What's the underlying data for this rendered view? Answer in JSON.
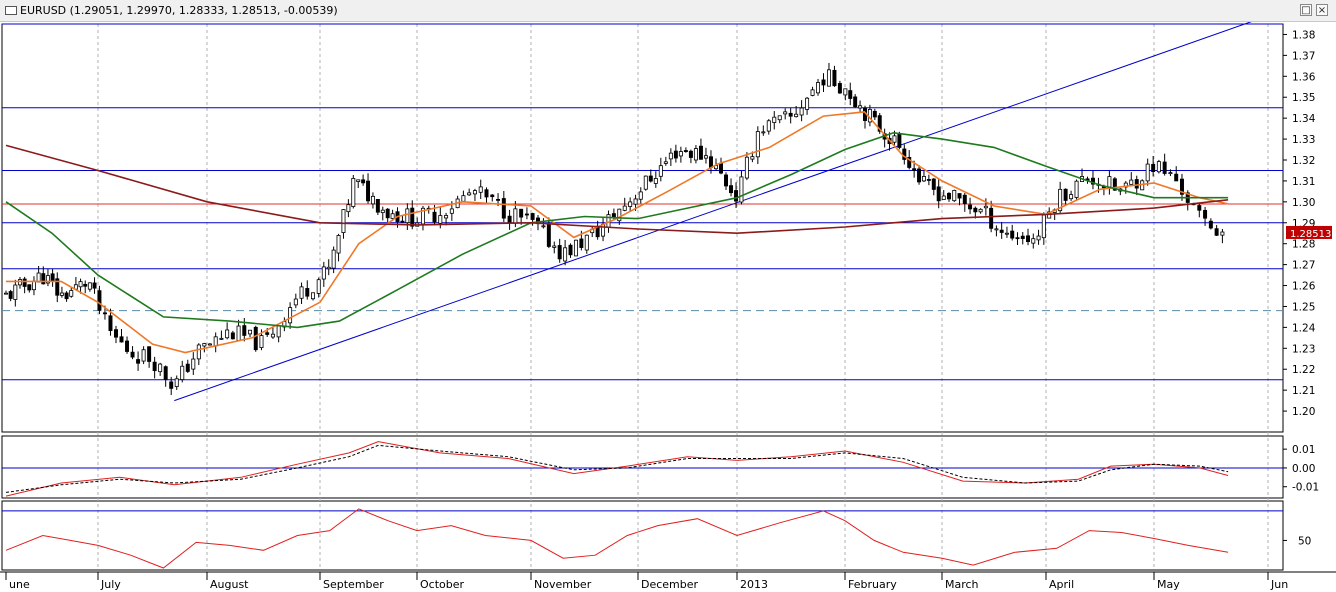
{
  "window": {
    "title": "EURUSD (1.29051, 1.29970, 1.28333, 1.28513, -0.00539)",
    "restore_icon": "restore-icon",
    "close_icon": "close-icon"
  },
  "colors": {
    "candle_up": "#ffffff",
    "candle_down": "#000000",
    "ma_fast": "#f07828",
    "ma_mid": "#1e7a1e",
    "ma_slow": "#8b1a1a",
    "hline": "#0000c8",
    "resistance": "#e03030",
    "trendline": "#0000c8",
    "indicator": "#e02020",
    "last_price_bg": "#c00000"
  },
  "chart_data": [
    {
      "type": "candlestick",
      "title": "EURUSD",
      "ohlc_header": {
        "open": 1.29051,
        "high": 1.2997,
        "low": 1.28333,
        "close": 1.28513,
        "change": -0.00539
      },
      "y_ticks": [
        "1.38",
        "1.37",
        "1.36",
        "1.35",
        "1.34",
        "1.33",
        "1.32",
        "1.31",
        "1.30",
        "1.29",
        "1.28",
        "1.27",
        "1.26",
        "1.25",
        "1.24",
        "1.23",
        "1.22",
        "1.21",
        "1.20"
      ],
      "ylim": [
        1.19,
        1.385
      ],
      "last_price_label": "1.28513",
      "x_labels": [
        "une",
        "July",
        "August",
        "September",
        "October",
        "November",
        "December",
        "2013",
        "February",
        "March",
        "April",
        "May",
        "Jun"
      ],
      "horizontal_levels": [
        1.385,
        1.345,
        1.315,
        1.299,
        1.29,
        1.268,
        1.248,
        1.215
      ],
      "dashed_levels": [
        1.248
      ],
      "red_levels": [
        1.299
      ],
      "trendline": {
        "from": {
          "month_index": 1.7,
          "value": 1.205
        },
        "to": {
          "month_index": 11.9,
          "value": 1.387
        }
      },
      "anchors": [
        [
          0.0,
          1.255
        ],
        [
          0.4,
          1.265
        ],
        [
          0.6,
          1.255
        ],
        [
          0.9,
          1.262
        ],
        [
          1.1,
          1.238
        ],
        [
          1.3,
          1.228
        ],
        [
          1.5,
          1.225
        ],
        [
          1.7,
          1.212
        ],
        [
          1.9,
          1.228
        ],
        [
          2.2,
          1.238
        ],
        [
          2.5,
          1.232
        ],
        [
          2.8,
          1.255
        ],
        [
          3.1,
          1.268
        ],
        [
          3.35,
          1.31
        ],
        [
          3.7,
          1.295
        ],
        [
          4.0,
          1.292
        ],
        [
          4.2,
          1.295
        ],
        [
          4.5,
          1.305
        ],
        [
          4.8,
          1.295
        ],
        [
          5.0,
          1.29
        ],
        [
          5.3,
          1.275
        ],
        [
          5.6,
          1.285
        ],
        [
          5.8,
          1.295
        ],
        [
          6.1,
          1.31
        ],
        [
          6.4,
          1.325
        ],
        [
          6.7,
          1.322
        ],
        [
          7.0,
          1.302
        ],
        [
          7.2,
          1.335
        ],
        [
          7.5,
          1.34
        ],
        [
          7.8,
          1.36
        ],
        [
          8.0,
          1.355
        ],
        [
          8.3,
          1.338
        ],
        [
          8.6,
          1.325
        ],
        [
          8.8,
          1.308
        ],
        [
          9.1,
          1.302
        ],
        [
          9.4,
          1.295
        ],
        [
          9.6,
          1.285
        ],
        [
          9.9,
          1.282
        ],
        [
          10.1,
          1.302
        ],
        [
          10.4,
          1.312
        ],
        [
          10.7,
          1.305
        ],
        [
          11.0,
          1.318
        ],
        [
          11.2,
          1.31
        ],
        [
          11.4,
          1.292
        ],
        [
          11.6,
          1.286
        ]
      ],
      "moving_averages": [
        {
          "name": "fast",
          "color_key": "ma_fast",
          "values": [
            [
              0.0,
              1.262
            ],
            [
              0.6,
              1.262
            ],
            [
              1.0,
              1.252
            ],
            [
              1.5,
              1.232
            ],
            [
              1.8,
              1.228
            ],
            [
              2.4,
              1.235
            ],
            [
              3.0,
              1.252
            ],
            [
              3.4,
              1.28
            ],
            [
              3.8,
              1.293
            ],
            [
              4.4,
              1.3
            ],
            [
              5.0,
              1.298
            ],
            [
              5.4,
              1.283
            ],
            [
              5.8,
              1.292
            ],
            [
              6.3,
              1.305
            ],
            [
              6.8,
              1.318
            ],
            [
              7.3,
              1.326
            ],
            [
              7.8,
              1.341
            ],
            [
              8.2,
              1.343
            ],
            [
              8.6,
              1.322
            ],
            [
              9.0,
              1.31
            ],
            [
              9.5,
              1.298
            ],
            [
              10.0,
              1.294
            ],
            [
              10.5,
              1.306
            ],
            [
              11.0,
              1.309
            ],
            [
              11.4,
              1.302
            ],
            [
              11.65,
              1.299
            ]
          ]
        },
        {
          "name": "mid",
          "color_key": "ma_mid",
          "values": [
            [
              0.0,
              1.3
            ],
            [
              0.5,
              1.285
            ],
            [
              1.0,
              1.265
            ],
            [
              1.6,
              1.245
            ],
            [
              2.2,
              1.243
            ],
            [
              2.8,
              1.24
            ],
            [
              3.2,
              1.243
            ],
            [
              3.8,
              1.258
            ],
            [
              4.4,
              1.275
            ],
            [
              5.0,
              1.29
            ],
            [
              5.5,
              1.293
            ],
            [
              6.0,
              1.292
            ],
            [
              6.5,
              1.297
            ],
            [
              7.0,
              1.302
            ],
            [
              7.5,
              1.313
            ],
            [
              8.0,
              1.325
            ],
            [
              8.5,
              1.333
            ],
            [
              9.0,
              1.33
            ],
            [
              9.5,
              1.326
            ],
            [
              10.0,
              1.317
            ],
            [
              10.5,
              1.308
            ],
            [
              11.0,
              1.302
            ],
            [
              11.65,
              1.302
            ]
          ]
        },
        {
          "name": "slow",
          "color_key": "ma_slow",
          "values": [
            [
              0.0,
              1.327
            ],
            [
              1.0,
              1.315
            ],
            [
              2.0,
              1.3
            ],
            [
              3.0,
              1.29
            ],
            [
              4.0,
              1.289
            ],
            [
              5.0,
              1.29
            ],
            [
              6.0,
              1.287
            ],
            [
              7.0,
              1.285
            ],
            [
              8.0,
              1.288
            ],
            [
              9.0,
              1.292
            ],
            [
              10.0,
              1.294
            ],
            [
              11.0,
              1.297
            ],
            [
              11.65,
              1.301
            ]
          ]
        }
      ]
    },
    {
      "type": "line",
      "title": "",
      "y_ticks": [
        "0.00",
        "-0.01"
      ],
      "y_ticks_pos": [
        0.0,
        -0.01
      ],
      "extra_tick": "0.01",
      "ylim": [
        -0.016,
        0.017
      ],
      "zero_line": 0.0,
      "series": [
        {
          "color_key": "indicator",
          "values": [
            [
              0.0,
              -0.015
            ],
            [
              0.6,
              -0.008
            ],
            [
              1.2,
              -0.005
            ],
            [
              1.7,
              -0.009
            ],
            [
              2.3,
              -0.005
            ],
            [
              2.8,
              0.002
            ],
            [
              3.3,
              0.008
            ],
            [
              3.6,
              0.014
            ],
            [
              4.2,
              0.008
            ],
            [
              4.8,
              0.005
            ],
            [
              5.4,
              -0.003
            ],
            [
              5.9,
              0.001
            ],
            [
              6.5,
              0.006
            ],
            [
              7.0,
              0.004
            ],
            [
              7.5,
              0.006
            ],
            [
              8.0,
              0.009
            ],
            [
              8.6,
              0.003
            ],
            [
              9.2,
              -0.007
            ],
            [
              9.8,
              -0.008
            ],
            [
              10.3,
              -0.006
            ],
            [
              10.6,
              0.001
            ],
            [
              11.0,
              0.002
            ],
            [
              11.4,
              0.0
            ],
            [
              11.65,
              -0.004
            ]
          ]
        },
        {
          "style": "dashed",
          "color": "#000000",
          "values": [
            [
              0.0,
              -0.013
            ],
            [
              0.6,
              -0.009
            ],
            [
              1.2,
              -0.006
            ],
            [
              1.7,
              -0.008
            ],
            [
              2.3,
              -0.006
            ],
            [
              2.8,
              0.0
            ],
            [
              3.3,
              0.006
            ],
            [
              3.6,
              0.012
            ],
            [
              4.2,
              0.009
            ],
            [
              4.8,
              0.006
            ],
            [
              5.4,
              -0.001
            ],
            [
              5.9,
              0.0
            ],
            [
              6.5,
              0.005
            ],
            [
              7.0,
              0.005
            ],
            [
              7.5,
              0.005
            ],
            [
              8.0,
              0.008
            ],
            [
              8.6,
              0.005
            ],
            [
              9.2,
              -0.005
            ],
            [
              9.8,
              -0.008
            ],
            [
              10.3,
              -0.007
            ],
            [
              10.6,
              -0.001
            ],
            [
              11.0,
              0.002
            ],
            [
              11.4,
              0.001
            ],
            [
              11.65,
              -0.002
            ]
          ]
        }
      ]
    },
    {
      "type": "line",
      "title": "",
      "y_ticks": [
        "50"
      ],
      "y_ticks_pos": [
        50
      ],
      "ylim": [
        20,
        90
      ],
      "reference_lines": [
        80
      ],
      "series": [
        {
          "color_key": "indicator",
          "values": [
            [
              0.0,
              40
            ],
            [
              0.4,
              55
            ],
            [
              0.7,
              50
            ],
            [
              1.0,
              45
            ],
            [
              1.3,
              35
            ],
            [
              1.6,
              22
            ],
            [
              1.9,
              48
            ],
            [
              2.2,
              45
            ],
            [
              2.5,
              40
            ],
            [
              2.8,
              55
            ],
            [
              3.1,
              60
            ],
            [
              3.4,
              82
            ],
            [
              3.7,
              70
            ],
            [
              4.0,
              60
            ],
            [
              4.3,
              65
            ],
            [
              4.6,
              55
            ],
            [
              5.0,
              50
            ],
            [
              5.3,
              32
            ],
            [
              5.6,
              35
            ],
            [
              5.9,
              55
            ],
            [
              6.2,
              65
            ],
            [
              6.6,
              72
            ],
            [
              7.0,
              55
            ],
            [
              7.4,
              68
            ],
            [
              7.8,
              80
            ],
            [
              8.0,
              70
            ],
            [
              8.3,
              50
            ],
            [
              8.6,
              38
            ],
            [
              9.0,
              32
            ],
            [
              9.3,
              25
            ],
            [
              9.7,
              38
            ],
            [
              10.1,
              42
            ],
            [
              10.4,
              60
            ],
            [
              10.7,
              58
            ],
            [
              11.0,
              52
            ],
            [
              11.3,
              45
            ],
            [
              11.65,
              38
            ]
          ]
        }
      ]
    }
  ]
}
